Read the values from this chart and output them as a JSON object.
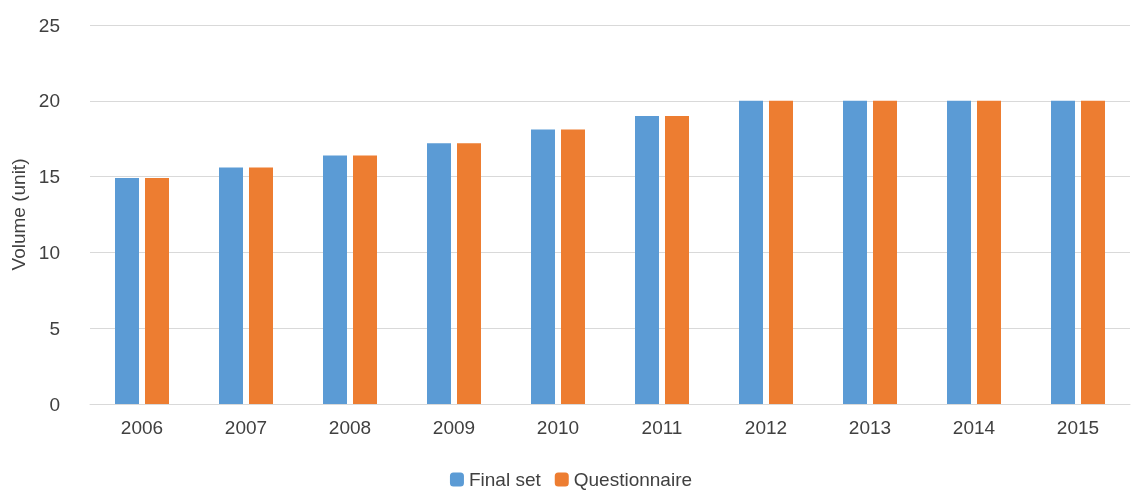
{
  "chart_data": {
    "type": "bar",
    "ylabel": "Volume (unit)",
    "categories": [
      "2006",
      "2007",
      "2008",
      "2009",
      "2010",
      "2011",
      "2012",
      "2013",
      "2014",
      "2015"
    ],
    "series": [
      {
        "name": "Final set",
        "color": "#5b9bd5",
        "values": [
          14.9,
          15.6,
          16.4,
          17.2,
          18.1,
          19.0,
          20,
          20,
          20,
          20
        ]
      },
      {
        "name": "Questionnaire",
        "color": "#ed7d31",
        "values": [
          14.9,
          15.6,
          16.4,
          17.2,
          18.1,
          19.0,
          20,
          20,
          20,
          20
        ]
      }
    ],
    "ylim": [
      0,
      25
    ],
    "yticks": [
      0,
      5,
      10,
      15,
      20,
      25
    ],
    "grid": "y",
    "legend": "bottom"
  }
}
